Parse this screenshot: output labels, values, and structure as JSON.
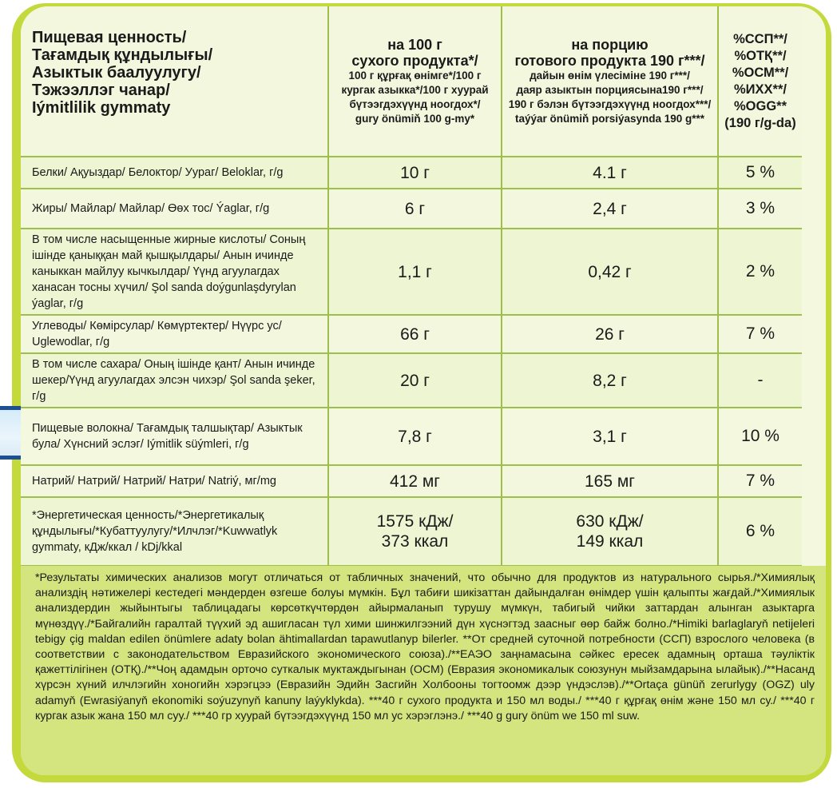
{
  "header": {
    "title_lines": [
      "Пищевая ценность/",
      "Тағамдық құндылығы/",
      "Азыктык баалуулугу/",
      "Тэжээллэг чанар/",
      "Iýmitlilik gymmaty"
    ],
    "col1": {
      "big": [
        "на 100 г",
        "сухого продукта*/"
      ],
      "small": [
        "100 г құрғақ өнімге*/100 г",
        "кургак азыкка*/100 г хуурай",
        "бүтээгдэхүүнд ноогдох*/",
        "gury önümiň 100 g-my*"
      ]
    },
    "col2": {
      "big": [
        "на порцию",
        "готового продукта 190 г***/"
      ],
      "small": [
        "дайын өнім үлесіміне 190 г***/",
        "даяр азыктын порциясына190 г***/",
        "190 г бэлэн бүтээгдэхүүнд ноогдох***/",
        "taýýar önümiň porsiýasynda 190 g***"
      ]
    },
    "col3": [
      "%ССП**/",
      "%ОТҚ**/",
      "%ОСМ**/",
      "%ИХХ**/",
      "%OGG**",
      "(190 г/g-da)"
    ]
  },
  "rows": [
    {
      "label": "Белки/ Ақуыздар/ Белоктор/ Уураг/ Beloklar, г/g",
      "v1": "10 г",
      "v2": "4.1 г",
      "pct": "5 %"
    },
    {
      "label": "Жиры/ Майлар/ Майлар/ Өөх тос/ Ýaglar, г/g",
      "v1": "6 г",
      "v2": "2,4 г",
      "pct": "3 %"
    },
    {
      "label": "В том числе насыщенные жирные кислоты/ Соның ішінде қаныққан май қышқылдары/ Анын ичинде каныккан майлуу кычкылдар/ Үүнд агуулагдах ханасан тосны хүчил/ Şol sanda doýgunlaşdyrylan ýaglar, г/g",
      "v1": "1,1 г",
      "v2": "0,42 г",
      "pct": "2 %"
    },
    {
      "label": "Углеводы/ Көмірсулар/ Көмүртектер/ Нүүрс ус/ Uglewodlar, г/g",
      "v1": "66 г",
      "v2": "26 г",
      "pct": "7 %"
    },
    {
      "label": "В том числе сахара/ Оның ішінде қант/ Анын ичинде шекер/Үүнд агуулагдах элсэн чихэр/ Şol sanda şeker, г/g",
      "v1": "20 г",
      "v2": "8,2 г",
      "pct": "-"
    },
    {
      "label": "Пищевые волокна/ Тағамдық талшықтар/ Азыктык була/ Хүнсний эслэг/ Iýmitlik süýmleri, г/g",
      "v1": "7,8 г",
      "v2": "3,1 г",
      "pct": "10 %"
    },
    {
      "label": "Натрий/ Натрий/ Натрий/ Натри/ Natriý, мг/mg",
      "v1": "412 мг",
      "v2": "165 мг",
      "pct": "7 %"
    },
    {
      "label": "*Энергетическая ценность/*Энергетикалық құндылығы/*Кубаттуулугу/*Илчлэг/*Kuwwatlyk gymmaty, кДж/ккал / kDj/kkal",
      "v1": "1575 кДж/\n373 ккал",
      "v2": "630 кДж/\n149 ккал",
      "pct": "6 %"
    }
  ],
  "notes": "*Результаты химических анализов могут отличаться от табличных значений, что обычно для продуктов из натурального сырья./*Химиялық анализдің нәтижелері кестедегі мәндерден өзгеше болуы мүмкін. Бұл табиғи шикізаттан дайындалған өнімдер үшін қалыпты жағдай./*Химиялык анализдердин жыйынтыгы таблицадагы көрсөткүчтөрдөн айырмаланып турушу мүмкүн, табигый чийки заттардан алынган азыктарга мүнөздүү./*Байгалийн гаралтай түүхий эд ашигласан түл хими шинжилгээний дүн хүснэгтэд заасныг өөр байж болно./*Himiki barlaglaryň netijeleri tebigy çig maldan edilen önümlere adaty bolan ähtimallardan tapawutlanyp bilerler. **От средней суточной потребности (ССП) взрослого человека (в соответствии с законодательством Евразийского экономического союза)./**ЕАЭО заңнамасына сәйкес ересек адамның орташа тәуліктік қажеттілігінен (ОТҚ)./**Чоң адамдын орточо суткалык муктаждыгынан (ОСМ) (Евразия экономикалык союзунун мыйзамдарына ылайык)./**Насанд хүрсэн хүний илчлэгийн хоногийн хэрэгцээ (Евразийн Эдийн Засгийн Холбооны тогтоомж дээр үндэслэв)./**Ortaça günüň zerurlygy (OGZ) uly adamyň (Ewrasiýanyň ekonomiki soýuzynyň kanuny laýyklykda). ***40 г сухого продукта и 150 мл воды./ ***40 г құрғақ өнім және 150 мл су./ ***40 г кургак азык жана 150 мл суу./ ***40 гр хуурай бүтээгдэхүүнд 150 мл ус хэрэглэнэ./ ***40 g gury önüm we 150 ml suw."
}
